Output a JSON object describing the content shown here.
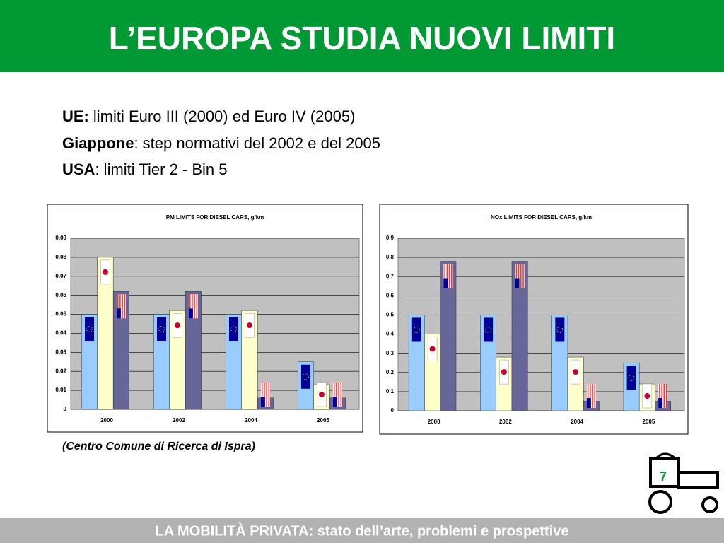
{
  "slide": {
    "title": "L’EUROPA STUDIA NUOVI LIMITI",
    "lines": [
      {
        "bold": "UE:",
        "text": "limiti Euro III (2000) ed Euro IV (2005)"
      },
      {
        "bold": "Giappone",
        "text": ": step normativi del 2002 e del 2005"
      },
      {
        "bold": "USA",
        "text": ": limiti Tier 2  - Bin 5"
      }
    ],
    "source": "(Centro Comune di Ricerca di Ispra)",
    "page_number": "7",
    "footer": "LA MOBILITÀ PRIVATA: stato dell’arte, problemi e prospettive"
  },
  "chart_data": [
    {
      "type": "bar",
      "title": "PM LIMITS FOR DIESEL CARS, g/km",
      "categories": [
        "2000",
        "2002",
        "2004",
        "2005"
      ],
      "series": [
        {
          "color": "#99ccff",
          "values": [
            0.05,
            0.05,
            0.05,
            0.025
          ]
        },
        {
          "color": "#ffffcc",
          "values": [
            0.08,
            0.052,
            0.052,
            0.013
          ]
        },
        {
          "color": "#666699",
          "values": [
            0.062,
            0.062,
            0.006,
            0.006
          ]
        }
      ],
      "ylim": [
        0,
        0.09
      ],
      "yticks": [
        0,
        0.01,
        0.02,
        0.03,
        0.04,
        0.05,
        0.06,
        0.07,
        0.08,
        0.09
      ],
      "grid": true
    },
    {
      "type": "bar",
      "title": "NOx LIMITS FOR DIESEL CARS, g/km",
      "categories": [
        "2000",
        "2002",
        "2004",
        "2005"
      ],
      "series": [
        {
          "color": "#99ccff",
          "values": [
            0.5,
            0.5,
            0.5,
            0.25
          ]
        },
        {
          "color": "#ffffcc",
          "values": [
            0.4,
            0.28,
            0.28,
            0.14
          ]
        },
        {
          "color": "#666699",
          "values": [
            0.78,
            0.78,
            0.05,
            0.05
          ]
        }
      ],
      "ylim": [
        0,
        0.9
      ],
      "yticks": [
        0,
        0.1,
        0.2,
        0.3,
        0.4,
        0.5,
        0.6,
        0.7,
        0.8,
        0.9
      ],
      "grid": true
    }
  ]
}
